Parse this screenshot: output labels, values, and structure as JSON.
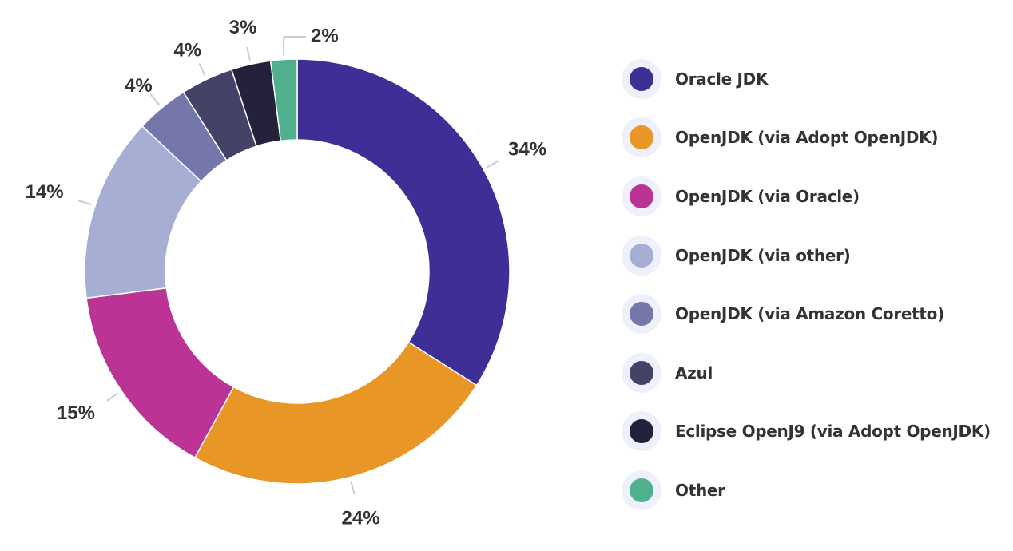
{
  "chart_data": {
    "type": "pie",
    "subtype": "donut",
    "categories": [
      "Oracle JDK",
      "OpenJDK (via Adopt OpenJDK)",
      "OpenJDK (via Oracle)",
      "OpenJDK (via other)",
      "OpenJDK (via Amazon Coretto)",
      "Azul",
      "Eclipse OpenJ9 (via Adopt OpenJDK)",
      "Other"
    ],
    "values": [
      34,
      24,
      15,
      14,
      4,
      4,
      3,
      2
    ],
    "labels": [
      "34%",
      "24%",
      "15%",
      "14%",
      "4%",
      "4%",
      "3%",
      "2%"
    ],
    "colors": [
      "#3d2f96",
      "#e89626",
      "#bb3395",
      "#a6aed4",
      "#7576aa",
      "#454268",
      "#23213b",
      "#50b08e"
    ],
    "legend_position": "right"
  }
}
